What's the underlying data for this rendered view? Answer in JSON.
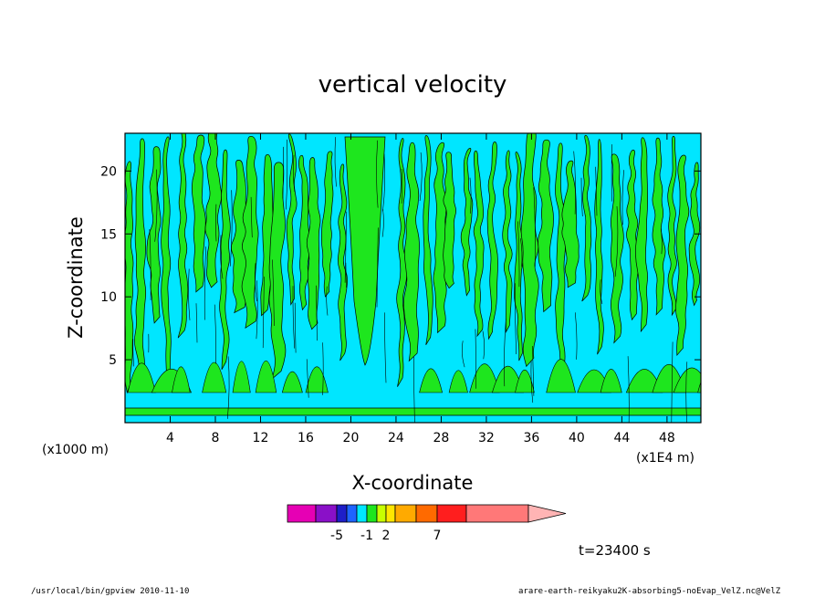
{
  "chart_data": {
    "type": "heatmap",
    "title": "vertical velocity",
    "xlabel": "X-coordinate",
    "ylabel": "Z-coordinate",
    "x_unit_label": "(x1E4 m)",
    "y_unit_label": "(x1000 m)",
    "x_ticks": [
      "4",
      "8",
      "12",
      "16",
      "20",
      "24",
      "28",
      "32",
      "36",
      "40",
      "44",
      "48"
    ],
    "x_tick_values": [
      4,
      8,
      12,
      16,
      20,
      24,
      28,
      32,
      36,
      40,
      44,
      48
    ],
    "y_ticks": [
      "5",
      "10",
      "15",
      "20"
    ],
    "y_tick_values": [
      5,
      10,
      15,
      20
    ],
    "xlim": [
      0,
      51
    ],
    "ylim": [
      0,
      23
    ],
    "colorbar": {
      "colors": [
        "#e600b4",
        "#8a10c8",
        "#1e1ec8",
        "#1e64ff",
        "#00e6ff",
        "#1ee61e",
        "#c8ff00",
        "#ffe600",
        "#ffaa00",
        "#ff6a00",
        "#ff1e1e",
        "#ff7878",
        "#ffb4b4"
      ],
      "labels": [
        "-5",
        "-1",
        "2",
        "7"
      ],
      "label_index": [
        1,
        4,
        6,
        9
      ]
    },
    "time_label": "t=23400 s"
  },
  "footer": {
    "left": "/usr/local/bin/gpview  2010-11-10",
    "right": "arare-earth-reikyaku2K-absorbing5-noEvap_VelZ.nc@VelZ"
  }
}
